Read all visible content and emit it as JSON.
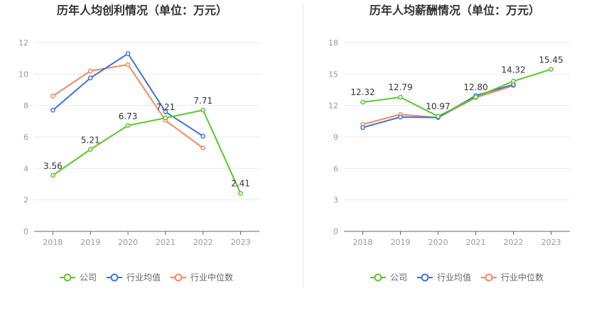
{
  "colors": {
    "company": "#5bc42c",
    "industry_avg": "#3f73d9",
    "industry_median": "#ef8a62",
    "grid": "#e6eaf2",
    "axis": "#666666"
  },
  "chart_data": [
    {
      "type": "line",
      "title": "历年人均创利情况（单位：万元）",
      "categories": [
        "2018",
        "2019",
        "2020",
        "2021",
        "2022",
        "2023"
      ],
      "ylim": [
        0,
        12
      ],
      "yticks": [
        "0",
        "2",
        "4",
        "6",
        "8",
        "10",
        "12"
      ],
      "grid": true,
      "legend_position": "bottom",
      "series": [
        {
          "name": "公司",
          "color_key": "company",
          "values": [
            3.56,
            5.21,
            6.73,
            7.21,
            7.71,
            2.41
          ],
          "labels": [
            "3.56",
            "5.21",
            "6.73",
            "7.21",
            "7.71",
            "2.41"
          ]
        },
        {
          "name": "行业均值",
          "color_key": "industry_avg",
          "values": [
            7.7,
            9.75,
            11.3,
            7.6,
            6.05,
            null
          ],
          "labels": []
        },
        {
          "name": "行业中位数",
          "color_key": "industry_median",
          "values": [
            8.6,
            10.2,
            10.6,
            7.05,
            5.3,
            null
          ],
          "labels": []
        }
      ]
    },
    {
      "type": "line",
      "title": "历年人均薪酬情况（单位：万元）",
      "categories": [
        "2018",
        "2019",
        "2020",
        "2021",
        "2022",
        "2023"
      ],
      "ylim": [
        0,
        18
      ],
      "yticks": [
        "0",
        "3",
        "6",
        "9",
        "12",
        "15",
        "18"
      ],
      "grid": true,
      "legend_position": "bottom",
      "series": [
        {
          "name": "公司",
          "color_key": "company",
          "values": [
            12.32,
            12.79,
            10.97,
            12.8,
            14.32,
            15.45
          ],
          "labels": [
            "12.32",
            "12.79",
            "10.97",
            "12.80",
            "14.32",
            "15.45"
          ]
        },
        {
          "name": "行业均值",
          "color_key": "industry_avg",
          "values": [
            9.9,
            10.9,
            10.85,
            12.95,
            14.0,
            null
          ],
          "labels": []
        },
        {
          "name": "行业中位数",
          "color_key": "industry_median",
          "values": [
            10.2,
            11.15,
            10.85,
            12.75,
            13.9,
            null
          ],
          "labels": []
        }
      ]
    }
  ]
}
